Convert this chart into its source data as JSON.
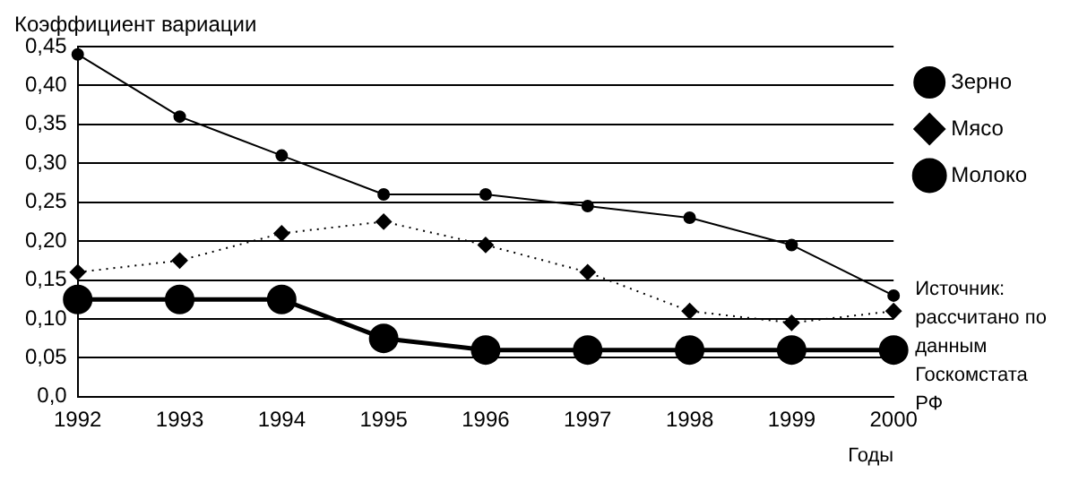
{
  "chart_data": {
    "type": "line",
    "ylabel": "Коэффициент вариации",
    "xlabel": "Годы",
    "categories": [
      "1992",
      "1993",
      "1994",
      "1995",
      "1996",
      "1997",
      "1998",
      "1999",
      "2000"
    ],
    "series": [
      {
        "name": "Зерно",
        "color": "#000000",
        "marker": "circle",
        "line_style": "solid",
        "values": [
          0.44,
          0.36,
          0.31,
          0.26,
          0.26,
          0.245,
          0.23,
          0.195,
          0.13
        ]
      },
      {
        "name": "Мясо",
        "color": "#000000",
        "marker": "diamond",
        "line_style": "dotted",
        "values": [
          0.16,
          0.175,
          0.21,
          0.225,
          0.195,
          0.16,
          0.11,
          0.095,
          0.11
        ]
      },
      {
        "name": "Молоко",
        "color": "#000000",
        "marker": "circle",
        "line_style": "solid",
        "values": [
          0.125,
          0.125,
          0.125,
          0.075,
          0.06,
          0.06,
          0.06,
          0.06,
          0.06
        ]
      }
    ],
    "ylim": [
      0,
      0.45
    ],
    "yticks": [
      {
        "value": 0,
        "label": "0,0"
      },
      {
        "value": 0.05,
        "label": "0,05"
      },
      {
        "value": 0.1,
        "label": "0,10"
      },
      {
        "value": 0.15,
        "label": "0,15"
      },
      {
        "value": 0.2,
        "label": "0,20"
      },
      {
        "value": 0.25,
        "label": "0,25"
      },
      {
        "value": 0.3,
        "label": "0,30"
      },
      {
        "value": 0.35,
        "label": "0,35"
      },
      {
        "value": 0.4,
        "label": "0,40"
      },
      {
        "value": 0.45,
        "label": "0,45"
      }
    ],
    "grid": "y",
    "legend": "top right",
    "annotations": [
      "Источник: рассчитано по данным Госкомстата РФ"
    ]
  }
}
